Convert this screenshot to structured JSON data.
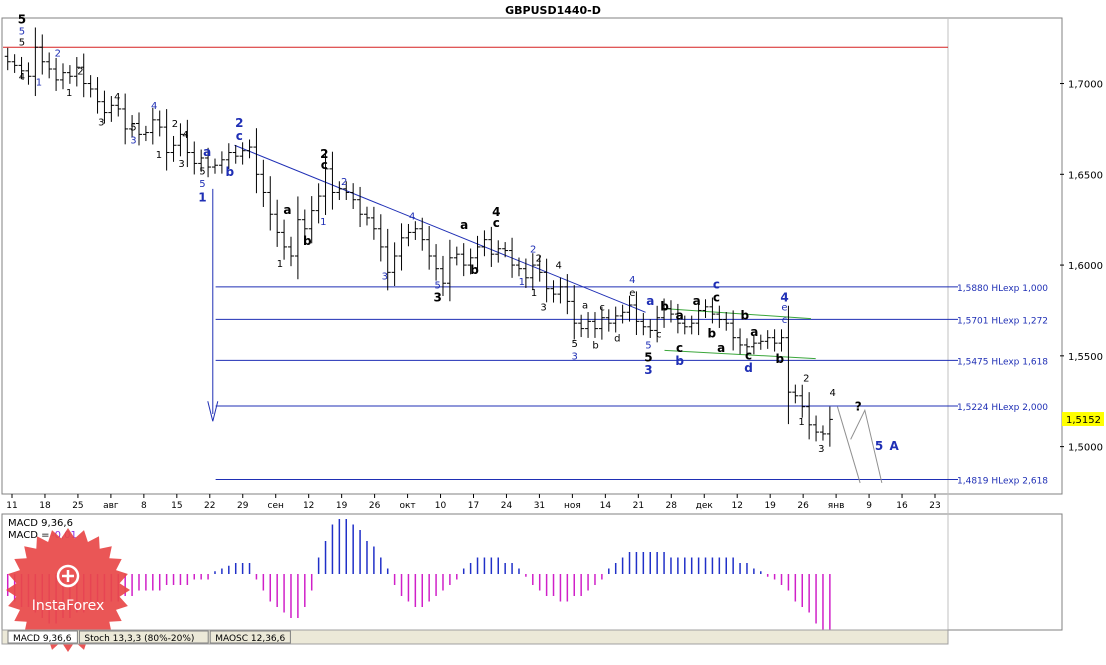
{
  "chart_title": "GBPUSD1440-D",
  "colors": {
    "bull_bar": "#000000",
    "bear_bar": "#000000",
    "wave_blue": "#1f2fb5",
    "wave_black": "#000000",
    "fib_line": "#1f2fb5",
    "resistance_line": "#d62020",
    "wedge_line": "#3aa63a",
    "macd_pos": "#2030c8",
    "macd_neg": "#d020c8",
    "price_tag_bg": "#ffff00",
    "panel_bg": "#ffffff",
    "border": "#808080"
  },
  "chart_data": {
    "type": "candlestick-ohlc-bars",
    "symbol": "GBPUSD",
    "timeframe": "D1",
    "y_range": [
      1.475,
      1.735
    ],
    "y_ticks": [
      "1,7000",
      "1,6500",
      "1,6000",
      "1,5500",
      "1,5000"
    ],
    "y_tick_values": [
      1.7,
      1.65,
      1.6,
      1.55,
      1.5
    ],
    "current_price": "1,5152",
    "current_price_value": 1.5152,
    "x_ticks": [
      "11",
      "18",
      "25",
      "авг",
      "8",
      "15",
      "22",
      "29",
      "сен",
      "12",
      "19",
      "26",
      "окт",
      "10",
      "17",
      "24",
      "31",
      "ноя",
      "14",
      "21",
      "28",
      "дек",
      "12",
      "19",
      "26",
      "янв",
      "9",
      "16",
      "23"
    ],
    "bars_close": [
      1.712,
      1.71,
      1.707,
      1.704,
      1.72,
      1.712,
      1.708,
      1.702,
      1.706,
      1.704,
      1.709,
      1.7,
      1.697,
      1.69,
      1.684,
      1.688,
      1.686,
      1.675,
      1.678,
      1.672,
      1.673,
      1.68,
      1.676,
      1.662,
      1.666,
      1.672,
      1.662,
      1.656,
      1.659,
      1.654,
      1.655,
      1.658,
      1.662,
      1.66,
      1.663,
      1.665,
      1.65,
      1.64,
      1.628,
      1.618,
      1.61,
      1.605,
      1.625,
      1.62,
      1.63,
      1.638,
      1.653,
      1.64,
      1.642,
      1.64,
      1.636,
      1.628,
      1.626,
      1.62,
      1.61,
      1.596,
      1.605,
      1.615,
      1.618,
      1.62,
      1.614,
      1.605,
      1.598,
      1.59,
      1.604,
      1.606,
      1.6,
      1.604,
      1.61,
      1.614,
      1.606,
      1.609,
      1.608,
      1.6,
      1.598,
      1.593,
      1.6,
      1.596,
      1.587,
      1.584,
      1.588,
      1.58,
      1.568,
      1.565,
      1.569,
      1.565,
      1.571,
      1.568,
      1.572,
      1.574,
      1.578,
      1.569,
      1.566,
      1.564,
      1.571,
      1.576,
      1.573,
      1.568,
      1.566,
      1.568,
      1.575,
      1.577,
      1.573,
      1.57,
      1.568,
      1.56,
      1.556,
      1.555,
      1.557,
      1.558,
      1.56,
      1.557,
      1.56,
      1.53,
      1.528,
      1.522,
      1.512,
      1.508,
      1.507,
      1.515
    ],
    "levels": [
      {
        "label": "1,5880 HLexp 1,000",
        "value": 1.588
      },
      {
        "label": "1,5701 HLexp 1,272",
        "value": 1.5701
      },
      {
        "label": "1,5475 HLexp 1,618",
        "value": 1.5475
      },
      {
        "label": "1,5224 HLexp 2,000",
        "value": 1.5224
      },
      {
        "label": "1,4819 HLexp 2,618",
        "value": 1.4819
      }
    ],
    "resistance_value": 1.72,
    "channel": {
      "from": [
        0.245,
        1.666
      ],
      "to": [
        0.68,
        1.574
      ]
    },
    "wave_labels": [
      {
        "t": "5",
        "x": 0.02,
        "y": 1.733,
        "c": "black",
        "b": true
      },
      {
        "t": "5",
        "x": 0.02,
        "y": 1.727,
        "c": "blue",
        "b": false
      },
      {
        "t": "5",
        "x": 0.02,
        "y": 1.721,
        "c": "black",
        "b": false
      },
      {
        "t": "4",
        "x": 0.02,
        "y": 1.702,
        "c": "black",
        "b": false
      },
      {
        "t": "1",
        "x": 0.038,
        "y": 1.699,
        "c": "blue",
        "b": false
      },
      {
        "t": "2",
        "x": 0.058,
        "y": 1.715,
        "c": "blue",
        "b": false
      },
      {
        "t": "1",
        "x": 0.07,
        "y": 1.693,
        "c": "black",
        "b": false
      },
      {
        "t": "2",
        "x": 0.082,
        "y": 1.705,
        "c": "black",
        "b": false
      },
      {
        "t": "3",
        "x": 0.104,
        "y": 1.677,
        "c": "black",
        "b": false
      },
      {
        "t": "4",
        "x": 0.121,
        "y": 1.691,
        "c": "black",
        "b": false
      },
      {
        "t": "5",
        "x": 0.138,
        "y": 1.674,
        "c": "black",
        "b": false
      },
      {
        "t": "3",
        "x": 0.138,
        "y": 1.667,
        "c": "blue",
        "b": false
      },
      {
        "t": "4",
        "x": 0.16,
        "y": 1.686,
        "c": "blue",
        "b": false
      },
      {
        "t": "1",
        "x": 0.165,
        "y": 1.659,
        "c": "black",
        "b": false
      },
      {
        "t": "2",
        "x": 0.182,
        "y": 1.676,
        "c": "black",
        "b": false
      },
      {
        "t": "4",
        "x": 0.193,
        "y": 1.67,
        "c": "black",
        "b": false
      },
      {
        "t": "3",
        "x": 0.189,
        "y": 1.654,
        "c": "black",
        "b": false
      },
      {
        "t": "5",
        "x": 0.211,
        "y": 1.65,
        "c": "black",
        "b": false
      },
      {
        "t": "5",
        "x": 0.211,
        "y": 1.643,
        "c": "blue",
        "b": false
      },
      {
        "t": "1",
        "x": 0.211,
        "y": 1.635,
        "c": "blue",
        "b": true
      },
      {
        "t": "a",
        "x": 0.216,
        "y": 1.66,
        "c": "blue",
        "b": true
      },
      {
        "t": "b",
        "x": 0.24,
        "y": 1.649,
        "c": "blue",
        "b": true
      },
      {
        "t": "2",
        "x": 0.25,
        "y": 1.676,
        "c": "blue",
        "b": true
      },
      {
        "t": "c",
        "x": 0.25,
        "y": 1.669,
        "c": "blue",
        "b": true
      },
      {
        "t": "a",
        "x": 0.301,
        "y": 1.628,
        "c": "black",
        "b": true
      },
      {
        "t": "b",
        "x": 0.322,
        "y": 1.611,
        "c": "black",
        "b": true
      },
      {
        "t": "1",
        "x": 0.293,
        "y": 1.599,
        "c": "black",
        "b": false
      },
      {
        "t": "1",
        "x": 0.339,
        "y": 1.622,
        "c": "blue",
        "b": false
      },
      {
        "t": "2",
        "x": 0.34,
        "y": 1.659,
        "c": "black",
        "b": true
      },
      {
        "t": "c",
        "x": 0.34,
        "y": 1.653,
        "c": "black",
        "b": true
      },
      {
        "t": "2",
        "x": 0.361,
        "y": 1.644,
        "c": "blue",
        "b": false
      },
      {
        "t": "4",
        "x": 0.433,
        "y": 1.625,
        "c": "blue",
        "b": false
      },
      {
        "t": "3",
        "x": 0.404,
        "y": 1.592,
        "c": "blue",
        "b": false
      },
      {
        "t": "a",
        "x": 0.488,
        "y": 1.62,
        "c": "black",
        "b": true
      },
      {
        "t": "b",
        "x": 0.499,
        "y": 1.595,
        "c": "black",
        "b": true
      },
      {
        "t": "4",
        "x": 0.522,
        "y": 1.627,
        "c": "black",
        "b": true
      },
      {
        "t": "c",
        "x": 0.522,
        "y": 1.621,
        "c": "black",
        "b": true
      },
      {
        "t": "5",
        "x": 0.46,
        "y": 1.587,
        "c": "blue",
        "b": false
      },
      {
        "t": "3",
        "x": 0.46,
        "y": 1.58,
        "c": "black",
        "b": true
      },
      {
        "t": "2",
        "x": 0.561,
        "y": 1.607,
        "c": "blue",
        "b": false
      },
      {
        "t": "2",
        "x": 0.567,
        "y": 1.602,
        "c": "black",
        "b": false
      },
      {
        "t": "1",
        "x": 0.549,
        "y": 1.589,
        "c": "blue",
        "b": false
      },
      {
        "t": "4",
        "x": 0.588,
        "y": 1.598,
        "c": "black",
        "b": false
      },
      {
        "t": "1",
        "x": 0.562,
        "y": 1.583,
        "c": "black",
        "b": false
      },
      {
        "t": "3",
        "x": 0.572,
        "y": 1.575,
        "c": "black",
        "b": false
      },
      {
        "t": "a",
        "x": 0.616,
        "y": 1.576,
        "c": "black",
        "b": false
      },
      {
        "t": "c",
        "x": 0.634,
        "y": 1.575,
        "c": "black",
        "b": false
      },
      {
        "t": "e",
        "x": 0.666,
        "y": 1.583,
        "c": "black",
        "b": false
      },
      {
        "t": "4",
        "x": 0.666,
        "y": 1.59,
        "c": "blue",
        "b": false
      },
      {
        "t": "5",
        "x": 0.605,
        "y": 1.555,
        "c": "black",
        "b": false
      },
      {
        "t": "3",
        "x": 0.605,
        "y": 1.548,
        "c": "blue",
        "b": false
      },
      {
        "t": "b",
        "x": 0.627,
        "y": 1.554,
        "c": "black",
        "b": false
      },
      {
        "t": "d",
        "x": 0.65,
        "y": 1.558,
        "c": "black",
        "b": false
      },
      {
        "t": "a",
        "x": 0.685,
        "y": 1.578,
        "c": "blue",
        "b": true
      },
      {
        "t": "5",
        "x": 0.683,
        "y": 1.554,
        "c": "blue",
        "b": false
      },
      {
        "t": "5",
        "x": 0.683,
        "y": 1.547,
        "c": "black",
        "b": true
      },
      {
        "t": "3",
        "x": 0.683,
        "y": 1.54,
        "c": "blue",
        "b": true
      },
      {
        "t": "c",
        "x": 0.694,
        "y": 1.56,
        "c": "black",
        "b": false
      },
      {
        "t": "b",
        "x": 0.7,
        "y": 1.575,
        "c": "black",
        "b": true
      },
      {
        "t": "a",
        "x": 0.716,
        "y": 1.57,
        "c": "black",
        "b": true
      },
      {
        "t": "c",
        "x": 0.716,
        "y": 1.552,
        "c": "black",
        "b": true
      },
      {
        "t": "b",
        "x": 0.716,
        "y": 1.545,
        "c": "blue",
        "b": true
      },
      {
        "t": "a",
        "x": 0.734,
        "y": 1.578,
        "c": "black",
        "b": true
      },
      {
        "t": "c",
        "x": 0.755,
        "y": 1.587,
        "c": "blue",
        "b": true
      },
      {
        "t": "c",
        "x": 0.755,
        "y": 1.58,
        "c": "black",
        "b": true
      },
      {
        "t": "b",
        "x": 0.75,
        "y": 1.56,
        "c": "black",
        "b": true
      },
      {
        "t": "a",
        "x": 0.76,
        "y": 1.552,
        "c": "black",
        "b": true
      },
      {
        "t": "b",
        "x": 0.785,
        "y": 1.57,
        "c": "black",
        "b": true
      },
      {
        "t": "a",
        "x": 0.795,
        "y": 1.561,
        "c": "black",
        "b": true
      },
      {
        "t": "c",
        "x": 0.789,
        "y": 1.548,
        "c": "black",
        "b": true
      },
      {
        "t": "d",
        "x": 0.789,
        "y": 1.541,
        "c": "blue",
        "b": true
      },
      {
        "t": "4",
        "x": 0.827,
        "y": 1.58,
        "c": "blue",
        "b": true
      },
      {
        "t": "e",
        "x": 0.827,
        "y": 1.575,
        "c": "blue",
        "b": false
      },
      {
        "t": "c",
        "x": 0.827,
        "y": 1.568,
        "c": "blue",
        "b": false
      },
      {
        "t": "b",
        "x": 0.822,
        "y": 1.546,
        "c": "black",
        "b": true
      },
      {
        "t": "2",
        "x": 0.85,
        "y": 1.536,
        "c": "black",
        "b": false
      },
      {
        "t": "4",
        "x": 0.878,
        "y": 1.528,
        "c": "black",
        "b": false
      },
      {
        "t": "1",
        "x": 0.845,
        "y": 1.512,
        "c": "black",
        "b": false
      },
      {
        "t": "3",
        "x": 0.866,
        "y": 1.497,
        "c": "black",
        "b": false
      },
      {
        "t": "?",
        "x": 0.905,
        "y": 1.52,
        "c": "black",
        "b": true
      },
      {
        "t": "5",
        "x": 0.927,
        "y": 1.498,
        "c": "blue",
        "b": true
      },
      {
        "t": "A",
        "x": 0.943,
        "y": 1.498,
        "c": "blue",
        "b": true
      }
    ],
    "macd": {
      "label1": "MACD 9,36,6",
      "label2_prefix": "MACD = ",
      "label2_value": "-0,01",
      "values": [
        -0.4,
        -0.5,
        -0.6,
        -0.6,
        -0.7,
        -0.8,
        -0.9,
        -0.9,
        -0.8,
        -0.8,
        -0.7,
        -0.7,
        -0.6,
        -0.6,
        -0.5,
        -0.5,
        -0.5,
        -0.4,
        -0.4,
        -0.3,
        -0.3,
        -0.3,
        -0.3,
        -0.2,
        -0.2,
        -0.2,
        -0.2,
        -0.1,
        -0.1,
        -0.1,
        0.05,
        0.1,
        0.15,
        0.2,
        0.2,
        0.2,
        -0.1,
        -0.3,
        -0.5,
        -0.6,
        -0.7,
        -0.8,
        -0.8,
        -0.6,
        -0.3,
        0.3,
        0.6,
        0.9,
        1.0,
        1.0,
        0.9,
        0.8,
        0.6,
        0.5,
        0.3,
        0.1,
        -0.2,
        -0.4,
        -0.5,
        -0.6,
        -0.6,
        -0.5,
        -0.4,
        -0.3,
        -0.2,
        -0.1,
        0.1,
        0.2,
        0.3,
        0.3,
        0.3,
        0.3,
        0.2,
        0.2,
        0.1,
        -0.05,
        -0.2,
        -0.3,
        -0.4,
        -0.4,
        -0.5,
        -0.5,
        -0.4,
        -0.4,
        -0.3,
        -0.2,
        -0.1,
        0.1,
        0.2,
        0.3,
        0.4,
        0.4,
        0.4,
        0.4,
        0.4,
        0.4,
        0.3,
        0.3,
        0.3,
        0.3,
        0.3,
        0.3,
        0.3,
        0.3,
        0.3,
        0.3,
        0.2,
        0.2,
        0.1,
        0.05,
        -0.05,
        -0.1,
        -0.2,
        -0.3,
        -0.5,
        -0.6,
        -0.7,
        -0.9,
        -1.1,
        -1.2
      ]
    },
    "tabs": [
      "MACD 9,36,6",
      "Stoch 13,3,3 (80%-20%)",
      "MAOSC 12,36,6"
    ],
    "logo_text": "InstaForex"
  }
}
